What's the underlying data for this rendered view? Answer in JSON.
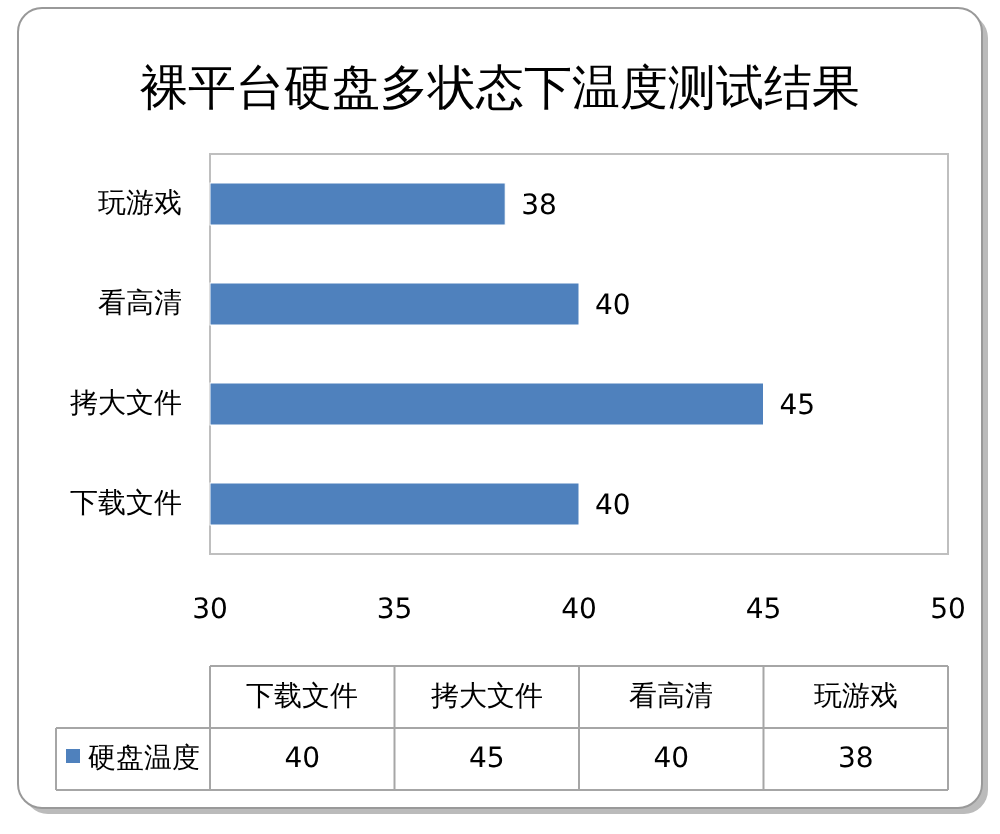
{
  "chart_data": [
    {
      "type": "bar",
      "orientation": "horizontal",
      "title": "裸平台硬盘多状态下温度测试结果",
      "categories": [
        "玩游戏",
        "看高清",
        "拷大文件",
        "下载文件"
      ],
      "series": [
        {
          "color": "#4f81bd",
          "values": [
            38,
            40,
            45,
            40
          ]
        }
      ],
      "xlim": [
        30,
        50
      ],
      "xticks": [
        30,
        35,
        40,
        45,
        50
      ],
      "data_labels": true
    },
    {
      "type": "other",
      "categories": [
        "下载文件",
        "拷大文件",
        "看高清",
        "玩游戏"
      ],
      "series": [
        {
          "name": "硬盘温度",
          "color": "#4f81bd",
          "values": [
            40,
            45,
            40,
            38
          ]
        }
      ],
      "data_labels": true,
      "legend": "left"
    }
  ]
}
